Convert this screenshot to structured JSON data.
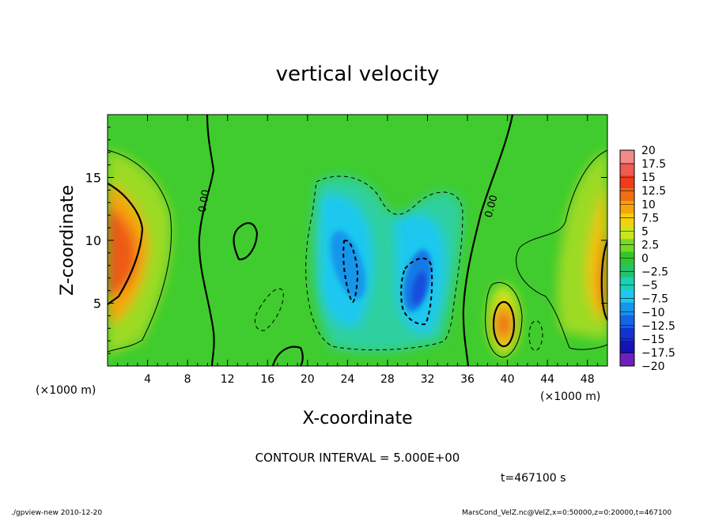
{
  "chart_data": {
    "type": "heatmap",
    "title": "vertical velocity",
    "xlabel": "X-coordinate",
    "ylabel": "Z-coordinate",
    "x_unit": "(×1000 m)",
    "z_unit": "(×1000 m)",
    "xlim": [
      0,
      50
    ],
    "ylim": [
      0,
      20
    ],
    "x_ticks": [
      4,
      8,
      12,
      16,
      20,
      24,
      28,
      32,
      36,
      40,
      44,
      48
    ],
    "y_ticks": [
      5,
      10,
      15
    ],
    "contour_label": "0.00",
    "colorbar": {
      "levels": [
        20,
        17.5,
        15,
        12.5,
        10,
        7.5,
        5,
        2.5,
        0,
        -2.5,
        -5,
        -7.5,
        -10,
        -12.5,
        -15,
        -17.5,
        -20
      ],
      "colors": [
        "#f38a8a",
        "#f05a50",
        "#ee3c1e",
        "#f06e14",
        "#f5a50a",
        "#f6d00a",
        "#c8e61e",
        "#78d823",
        "#2fc72d",
        "#23c46a",
        "#19d2b4",
        "#1ec8f0",
        "#1496eb",
        "#1464e6",
        "#1432d2",
        "#1414b4",
        "#6e1ebe"
      ]
    },
    "features": [
      {
        "kind": "updraft",
        "x": 1,
        "z": 8,
        "peak": 12
      },
      {
        "kind": "updraft",
        "x": 39.5,
        "z": 3,
        "peak": 12
      },
      {
        "kind": "downdraft",
        "x": 24,
        "z": 7.5,
        "peak": -11
      },
      {
        "kind": "downdraft",
        "x": 30.5,
        "z": 6,
        "peak": -12
      }
    ]
  },
  "footer": {
    "interval": "CONTOUR INTERVAL = 5.000E+00",
    "time": "t=467100 s",
    "program": "./gpview-new   2010-12-20",
    "source": "MarsCond_VelZ.nc@VelZ,x=0:50000,z=0:20000,t=467100"
  }
}
